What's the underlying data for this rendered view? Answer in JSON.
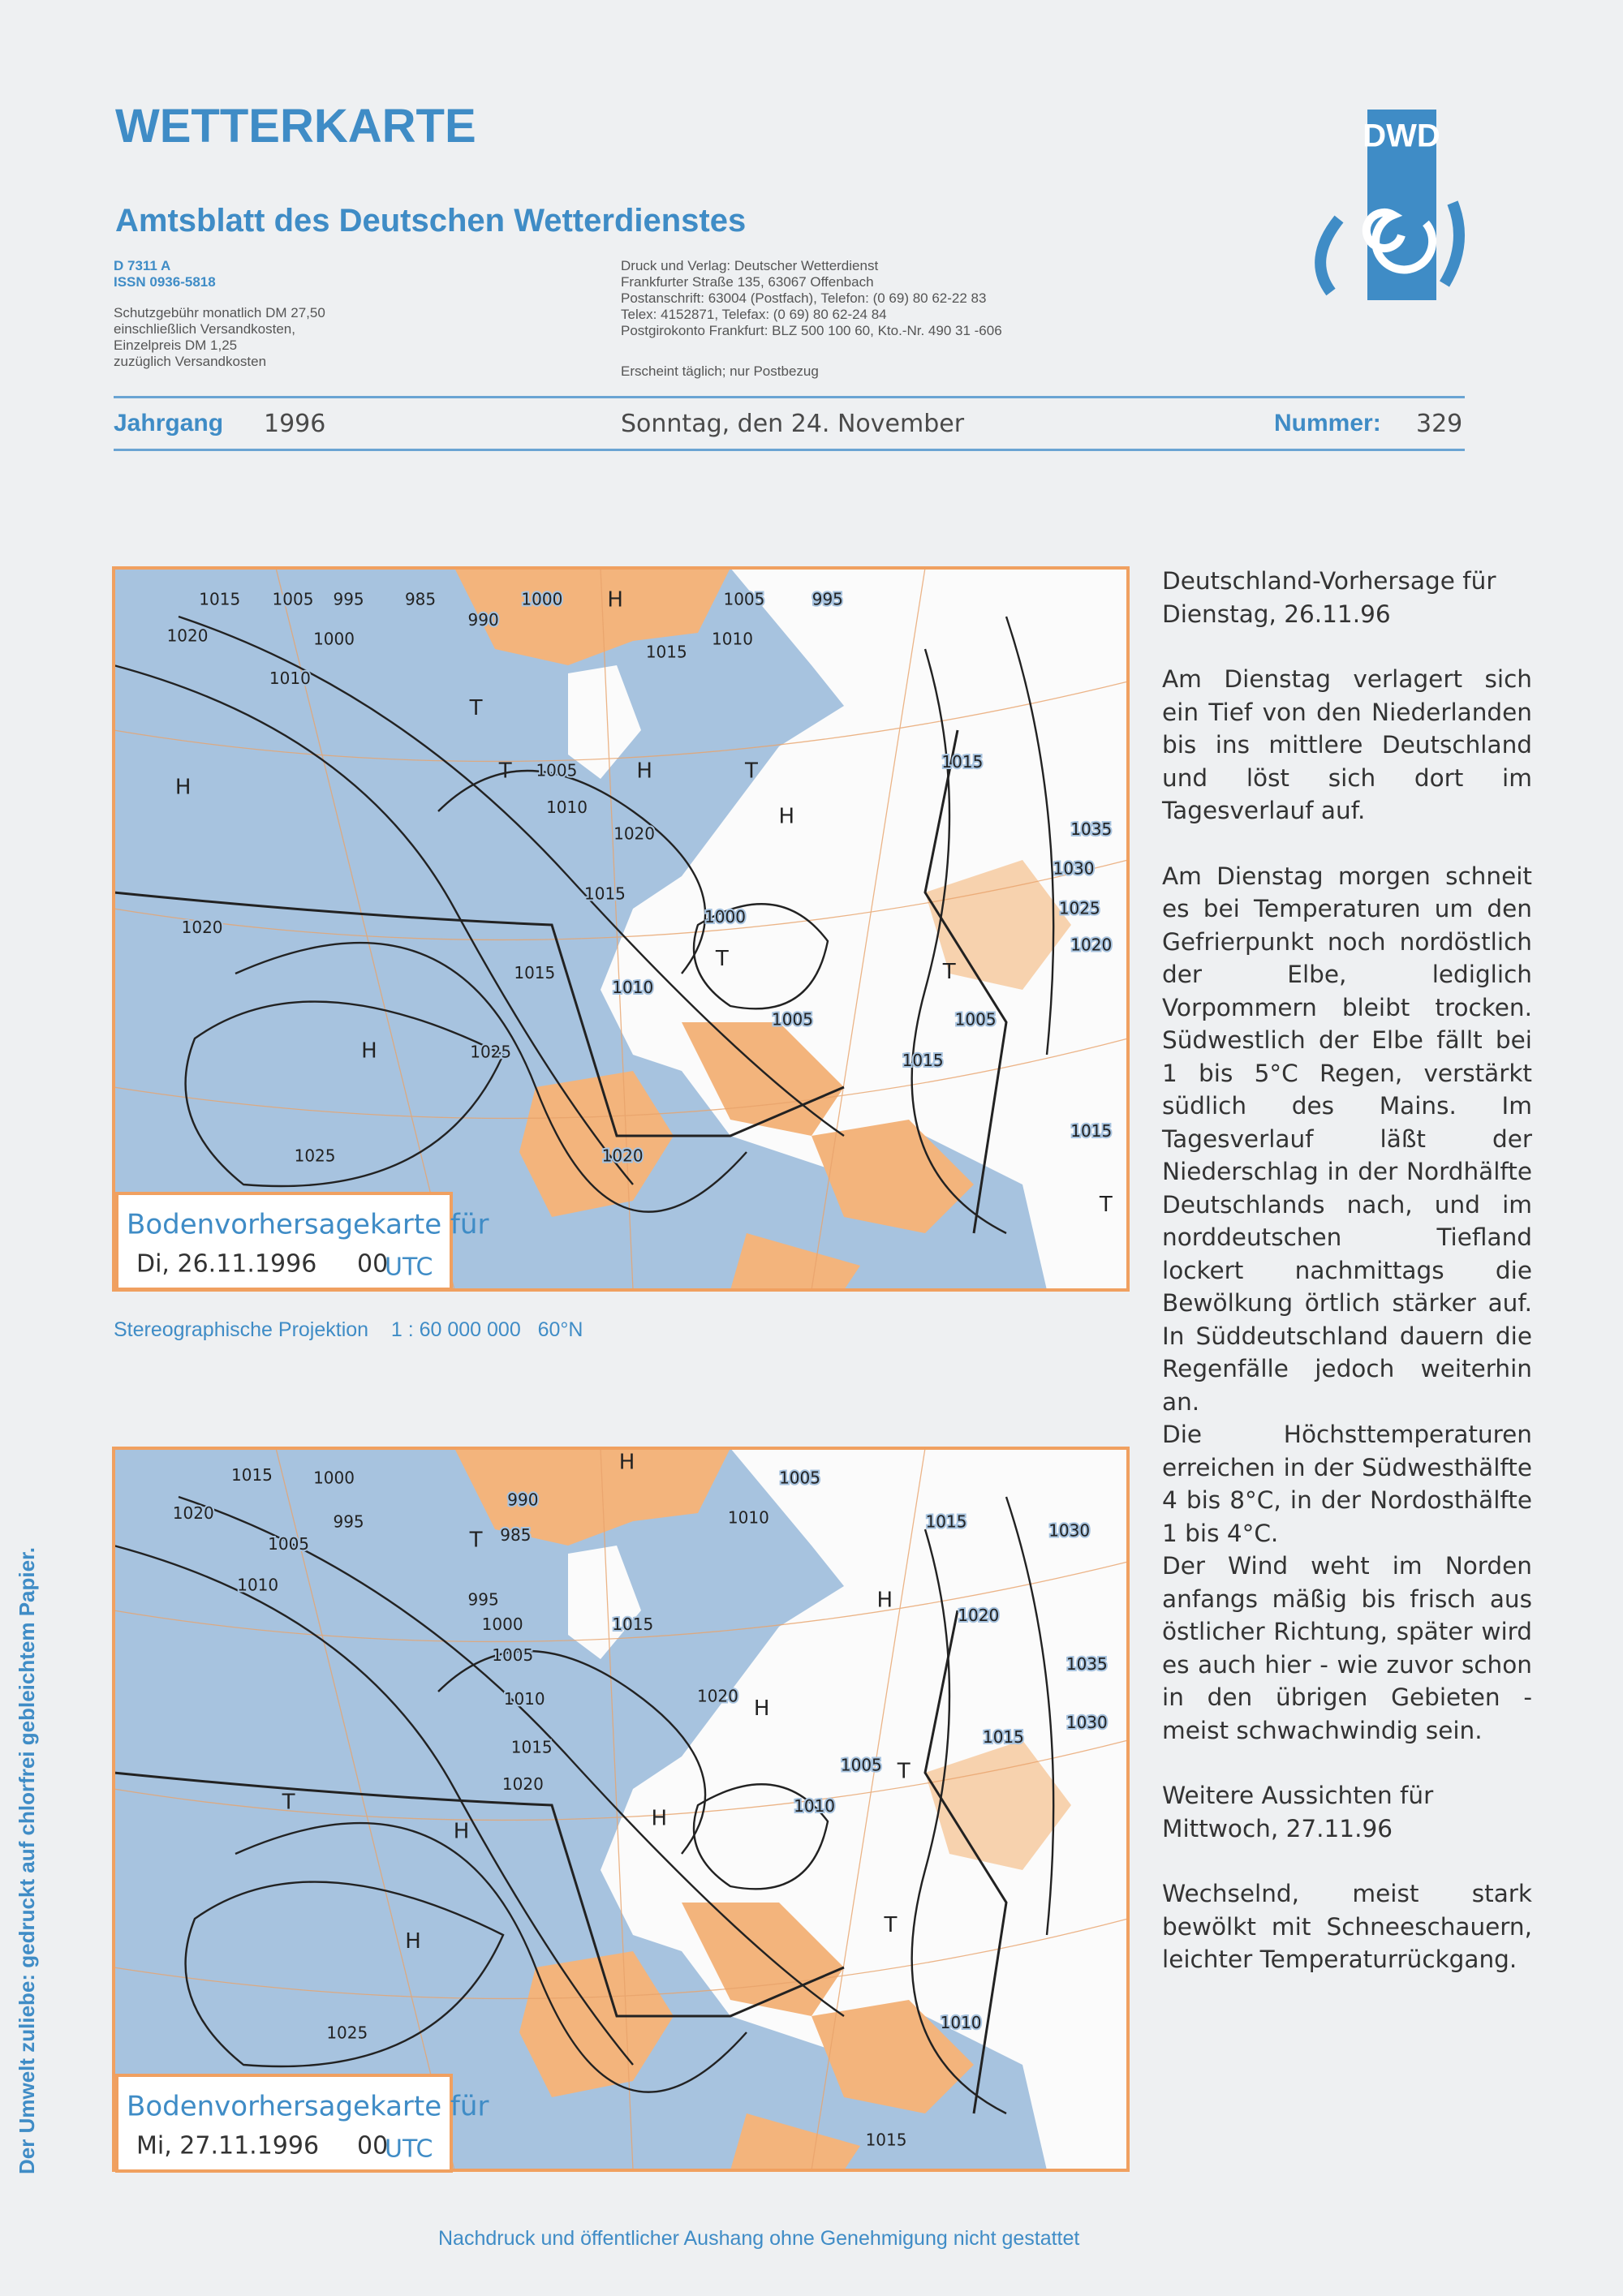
{
  "header": {
    "title": "WETTERKARTE",
    "subtitle": "Amtsblatt des Deutschen Wetterdienstes",
    "logo": "DWD",
    "ids": [
      "D 7311 A",
      "ISSN 0936-5818"
    ],
    "fees": [
      "Schutzgebühr monatlich DM 27,50",
      "einschließlich Versandkosten,",
      "Einzelpreis DM 1,25",
      "zuzüglich Versandkosten"
    ],
    "publisher": [
      "Druck und Verlag: Deutscher Wetterdienst",
      "Frankfurter Straße 135, 63067 Offenbach",
      "Postanschrift: 63004 (Postfach), Telefon: (0 69) 80 62-22 83",
      "Telex: 4152871, Telefax: (0 69) 80 62-24 84",
      "Postgirokonto Frankfurt: BLZ 500 100 60, Kto.-Nr. 490 31 -606"
    ],
    "frequency": "Erscheint täglich; nur Postbezug"
  },
  "issue": {
    "year_label": "Jahrgang",
    "year": "1996",
    "date": "Sonntag, den 24. November",
    "number_label": "Nummer:",
    "number": "329"
  },
  "maps": [
    {
      "caption_title": "Bodenvorhersagekarte für",
      "caption_date": "Di, 26.11.1996",
      "caption_hour": "00",
      "caption_unit": "UTC",
      "isobars": [
        "1015",
        "1005",
        "995",
        "985",
        "990",
        "1000",
        "1005",
        "995",
        "1020",
        "1000",
        "1010",
        "1015",
        "1010",
        "1005",
        "1010",
        "1020",
        "1015",
        "1020",
        "1000",
        "1015",
        "1010",
        "1005",
        "1025",
        "1015",
        "1005",
        "1025",
        "1020",
        "1015",
        "1035",
        "1030",
        "1025",
        "1020",
        "1015"
      ],
      "centers": [
        "H",
        "H",
        "T",
        "T",
        "H",
        "T",
        "H",
        "T",
        "T",
        "H",
        "T"
      ]
    },
    {
      "caption_title": "Bodenvorhersagekarte für",
      "caption_date": "Mi, 27.11.1996",
      "caption_hour": "00",
      "caption_unit": "UTC",
      "isobars": [
        "1015",
        "1000",
        "995",
        "1020",
        "1005",
        "1010",
        "990",
        "985",
        "995",
        "1000",
        "1005",
        "1010",
        "1015",
        "1020",
        "1005",
        "1010",
        "1015",
        "1020",
        "1015",
        "1030",
        "1020",
        "1035",
        "1030",
        "1015",
        "1005",
        "1010",
        "1010",
        "1025",
        "1015"
      ],
      "centers": [
        "H",
        "T",
        "H",
        "H",
        "T",
        "H",
        "H",
        "T",
        "H",
        "T"
      ]
    }
  ],
  "projection": {
    "name": "Stereographische Projektion",
    "scale": "1 : 60 000 000",
    "latitude": "60°N"
  },
  "forecast": {
    "heading": "Deutschland-Vorhersage für Dienstag, 26.11.96",
    "paragraphs": [
      "Am Dienstag verlagert sich ein Tief von den Niederlanden bis ins mittlere Deutschland und löst sich dort im Tagesverlauf auf.",
      "Am Dienstag morgen schneit es bei Temperaturen um den Gefrierpunkt noch nordöstlich der Elbe, lediglich Vorpommern bleibt trocken. Südwestlich der Elbe fällt bei 1 bis 5°C Regen, verstärkt südlich des Mains. Im Tagesverlauf läßt der Niederschlag in der Nordhälfte Deutschlands nach, und im norddeutschen Tiefland lockert nachmittags die Bewölkung örtlich stärker auf. In Süddeutschland dauern die Regenfälle jedoch weiterhin an.",
      "Die Höchsttemperaturen erreichen in der Südwesthälfte 4 bis 8°C, in der Nordosthälfte 1 bis 4°C.",
      "Der Wind weht im Norden anfangs mäßig bis frisch aus östlicher Richtung, später wird es auch hier - wie zuvor schon in den übrigen Gebieten - meist schwachwindig sein."
    ],
    "outlook_heading": "Weitere Aussichten für Mittwoch, 27.11.96",
    "outlook": "Wechselnd, meist stark bewölkt mit Schneeschauern, leichter Temperaturrückgang."
  },
  "side_note": "Der Umwelt zuliebe: gedruckt auf chlorfrei gebleichtem Papier.",
  "footer": "Nachdruck und öffentlicher Aushang ohne Genehmigung nicht gestattet"
}
